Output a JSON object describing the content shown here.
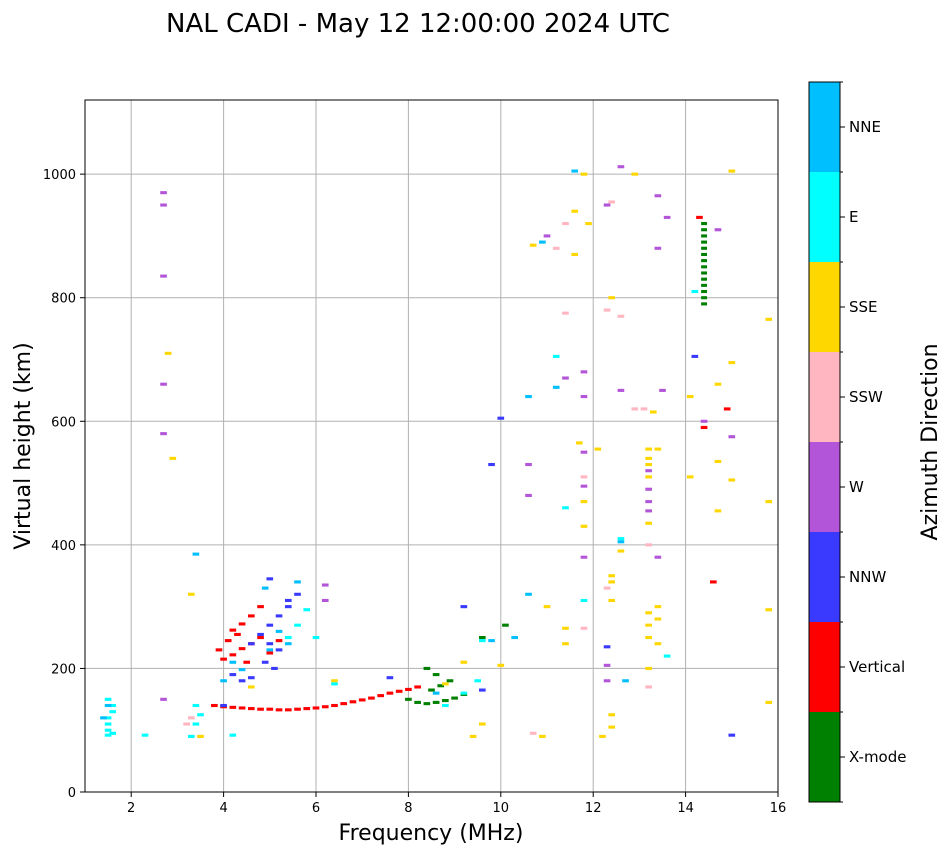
{
  "chart_data": {
    "type": "scatter",
    "title": "NAL CADI - May 12 12:00:00 2024 UTC",
    "xlabel": "Frequency (MHz)",
    "ylabel": "Virtual height (km)",
    "xlim": [
      1,
      16
    ],
    "ylim": [
      0,
      1120
    ],
    "xticks": [
      2,
      4,
      6,
      8,
      10,
      12,
      14,
      16
    ],
    "yticks": [
      0,
      200,
      400,
      600,
      800,
      1000
    ],
    "grid": true,
    "colorbar": {
      "title": "Azimuth Direction",
      "categories": [
        {
          "name": "X-mode",
          "color": "#008000"
        },
        {
          "name": "Vertical",
          "color": "#ff0000"
        },
        {
          "name": "NNW",
          "color": "#3a3aff"
        },
        {
          "name": "W",
          "color": "#b355d8"
        },
        {
          "name": "SSW",
          "color": "#ffb6c1"
        },
        {
          "name": "SSE",
          "color": "#ffd700"
        },
        {
          "name": "E",
          "color": "#00ffff"
        },
        {
          "name": "NNE",
          "color": "#00bfff"
        }
      ]
    },
    "series": [
      {
        "name": "Vertical",
        "points": [
          [
            3.8,
            140
          ],
          [
            4.0,
            138
          ],
          [
            4.2,
            137
          ],
          [
            4.4,
            136
          ],
          [
            4.6,
            135
          ],
          [
            4.8,
            134
          ],
          [
            5.0,
            134
          ],
          [
            5.2,
            133
          ],
          [
            5.4,
            133
          ],
          [
            5.6,
            134
          ],
          [
            5.8,
            135
          ],
          [
            6.0,
            136
          ],
          [
            6.2,
            138
          ],
          [
            6.4,
            140
          ],
          [
            6.6,
            143
          ],
          [
            6.8,
            146
          ],
          [
            7.0,
            149
          ],
          [
            7.2,
            152
          ],
          [
            7.4,
            156
          ],
          [
            7.6,
            160
          ],
          [
            7.8,
            163
          ],
          [
            8.0,
            166
          ],
          [
            8.2,
            170
          ],
          [
            4.0,
            215
          ],
          [
            4.2,
            222
          ],
          [
            4.4,
            232
          ],
          [
            4.6,
            240
          ],
          [
            4.8,
            250
          ],
          [
            4.2,
            262
          ],
          [
            4.4,
            272
          ],
          [
            4.6,
            285
          ],
          [
            4.8,
            300
          ],
          [
            5.0,
            225
          ],
          [
            5.2,
            245
          ],
          [
            3.9,
            230
          ],
          [
            4.1,
            245
          ],
          [
            4.3,
            255
          ],
          [
            4.5,
            210
          ],
          [
            14.3,
            930
          ],
          [
            14.4,
            590
          ],
          [
            14.6,
            340
          ],
          [
            14.9,
            620
          ]
        ]
      },
      {
        "name": "X-mode",
        "points": [
          [
            8.0,
            150
          ],
          [
            8.2,
            145
          ],
          [
            8.4,
            143
          ],
          [
            8.6,
            145
          ],
          [
            8.8,
            148
          ],
          [
            9.0,
            152
          ],
          [
            9.2,
            158
          ],
          [
            8.5,
            165
          ],
          [
            8.7,
            172
          ],
          [
            8.9,
            180
          ],
          [
            8.6,
            190
          ],
          [
            8.4,
            200
          ],
          [
            9.6,
            250
          ],
          [
            10.1,
            270
          ],
          [
            14.4,
            790
          ],
          [
            14.4,
            800
          ],
          [
            14.4,
            810
          ],
          [
            14.4,
            820
          ],
          [
            14.4,
            830
          ],
          [
            14.4,
            840
          ],
          [
            14.4,
            850
          ],
          [
            14.4,
            860
          ],
          [
            14.4,
            870
          ],
          [
            14.4,
            880
          ],
          [
            14.4,
            890
          ],
          [
            14.4,
            900
          ],
          [
            14.4,
            910
          ],
          [
            14.4,
            920
          ]
        ]
      },
      {
        "name": "NNW",
        "points": [
          [
            4.6,
            240
          ],
          [
            4.8,
            255
          ],
          [
            5.0,
            270
          ],
          [
            5.2,
            285
          ],
          [
            5.4,
            300
          ],
          [
            5.6,
            320
          ],
          [
            5.0,
            240
          ],
          [
            5.2,
            230
          ],
          [
            4.9,
            210
          ],
          [
            5.1,
            200
          ],
          [
            4.4,
            180
          ],
          [
            4.6,
            185
          ],
          [
            5.0,
            345
          ],
          [
            5.4,
            310
          ],
          [
            4.2,
            190
          ],
          [
            4.0,
            140
          ],
          [
            7.6,
            185
          ],
          [
            9.2,
            300
          ],
          [
            9.6,
            165
          ],
          [
            9.8,
            530
          ],
          [
            10.0,
            605
          ],
          [
            12.3,
            235
          ],
          [
            15.0,
            92
          ],
          [
            14.2,
            705
          ]
        ]
      },
      {
        "name": "W",
        "points": [
          [
            2.7,
            150
          ],
          [
            2.7,
            580
          ],
          [
            2.7,
            660
          ],
          [
            2.7,
            835
          ],
          [
            2.7,
            950
          ],
          [
            2.7,
            970
          ],
          [
            6.2,
            335
          ],
          [
            6.2,
            310
          ],
          [
            10.6,
            480
          ],
          [
            10.6,
            530
          ],
          [
            11.0,
            900
          ],
          [
            11.4,
            670
          ],
          [
            11.8,
            640
          ],
          [
            11.8,
            680
          ],
          [
            11.8,
            550
          ],
          [
            11.8,
            495
          ],
          [
            11.8,
            380
          ],
          [
            12.6,
            650
          ],
          [
            12.6,
            1012
          ],
          [
            12.3,
            950
          ],
          [
            13.2,
            520
          ],
          [
            13.2,
            490
          ],
          [
            13.2,
            470
          ],
          [
            13.2,
            455
          ],
          [
            13.4,
            380
          ],
          [
            13.4,
            880
          ],
          [
            13.4,
            965
          ],
          [
            13.5,
            650
          ],
          [
            13.6,
            930
          ],
          [
            14.4,
            600
          ],
          [
            14.7,
            910
          ],
          [
            15.0,
            575
          ],
          [
            12.3,
            180
          ],
          [
            12.3,
            205
          ]
        ]
      },
      {
        "name": "SSW",
        "points": [
          [
            3.2,
            110
          ],
          [
            3.3,
            120
          ],
          [
            12.3,
            330
          ],
          [
            12.6,
            770
          ],
          [
            12.3,
            780
          ],
          [
            11.8,
            510
          ],
          [
            11.8,
            265
          ],
          [
            11.2,
            880
          ],
          [
            11.4,
            920
          ],
          [
            13.2,
            170
          ],
          [
            13.2,
            400
          ],
          [
            12.9,
            620
          ],
          [
            13.1,
            620
          ],
          [
            10.7,
            95
          ],
          [
            12.4,
            955
          ],
          [
            11.4,
            775
          ]
        ]
      },
      {
        "name": "SSE",
        "points": [
          [
            2.8,
            710
          ],
          [
            2.9,
            540
          ],
          [
            3.3,
            320
          ],
          [
            3.5,
            90
          ],
          [
            4.6,
            170
          ],
          [
            6.4,
            180
          ],
          [
            8.8,
            175
          ],
          [
            9.2,
            210
          ],
          [
            9.4,
            90
          ],
          [
            9.6,
            110
          ],
          [
            10.0,
            205
          ],
          [
            10.7,
            885
          ],
          [
            10.9,
            90
          ],
          [
            11.0,
            300
          ],
          [
            11.4,
            240
          ],
          [
            11.4,
            265
          ],
          [
            11.6,
            940
          ],
          [
            11.6,
            870
          ],
          [
            11.7,
            565
          ],
          [
            11.8,
            470
          ],
          [
            11.8,
            430
          ],
          [
            11.9,
            920
          ],
          [
            12.1,
            555
          ],
          [
            12.2,
            90
          ],
          [
            12.4,
            800
          ],
          [
            12.4,
            350
          ],
          [
            12.4,
            340
          ],
          [
            12.4,
            310
          ],
          [
            12.4,
            125
          ],
          [
            12.4,
            105
          ],
          [
            12.6,
            390
          ],
          [
            12.9,
            1000
          ],
          [
            13.2,
            555
          ],
          [
            13.2,
            540
          ],
          [
            13.2,
            530
          ],
          [
            13.2,
            510
          ],
          [
            13.2,
            435
          ],
          [
            13.2,
            290
          ],
          [
            13.2,
            270
          ],
          [
            13.2,
            250
          ],
          [
            13.2,
            200
          ],
          [
            13.4,
            555
          ],
          [
            13.4,
            300
          ],
          [
            13.4,
            280
          ],
          [
            13.4,
            240
          ],
          [
            14.1,
            640
          ],
          [
            14.1,
            510
          ],
          [
            14.7,
            660
          ],
          [
            14.7,
            535
          ],
          [
            14.7,
            455
          ],
          [
            15.0,
            695
          ],
          [
            15.0,
            505
          ],
          [
            15.0,
            1005
          ],
          [
            15.8,
            765
          ],
          [
            15.8,
            470
          ],
          [
            15.8,
            295
          ],
          [
            15.8,
            145
          ],
          [
            11.8,
            1000
          ],
          [
            13.3,
            615
          ]
        ]
      },
      {
        "name": "E",
        "points": [
          [
            1.5,
            100
          ],
          [
            1.5,
            110
          ],
          [
            1.5,
            120
          ],
          [
            1.6,
            130
          ],
          [
            1.6,
            140
          ],
          [
            1.5,
            150
          ],
          [
            1.5,
            92
          ],
          [
            1.6,
            95
          ],
          [
            2.3,
            92
          ],
          [
            3.3,
            90
          ],
          [
            3.4,
            110
          ],
          [
            3.4,
            140
          ],
          [
            3.5,
            125
          ],
          [
            4.2,
            92
          ],
          [
            5.4,
            250
          ],
          [
            5.6,
            270
          ],
          [
            5.8,
            295
          ],
          [
            6.0,
            250
          ],
          [
            6.4,
            175
          ],
          [
            8.8,
            140
          ],
          [
            9.2,
            160
          ],
          [
            9.5,
            180
          ],
          [
            9.6,
            245
          ],
          [
            11.8,
            310
          ],
          [
            12.6,
            410
          ],
          [
            13.6,
            220
          ],
          [
            14.2,
            810
          ],
          [
            11.4,
            460
          ],
          [
            11.2,
            705
          ]
        ]
      },
      {
        "name": "NNE",
        "points": [
          [
            1.4,
            120
          ],
          [
            1.5,
            140
          ],
          [
            3.4,
            385
          ],
          [
            4.9,
            330
          ],
          [
            5.6,
            340
          ],
          [
            5.0,
            230
          ],
          [
            5.2,
            260
          ],
          [
            5.4,
            240
          ],
          [
            4.2,
            210
          ],
          [
            4.4,
            198
          ],
          [
            4.0,
            180
          ],
          [
            8.6,
            160
          ],
          [
            9.8,
            245
          ],
          [
            10.3,
            250
          ],
          [
            10.6,
            320
          ],
          [
            10.6,
            640
          ],
          [
            10.9,
            890
          ],
          [
            11.2,
            655
          ],
          [
            11.6,
            1005
          ],
          [
            12.6,
            405
          ],
          [
            12.7,
            180
          ]
        ]
      }
    ]
  }
}
